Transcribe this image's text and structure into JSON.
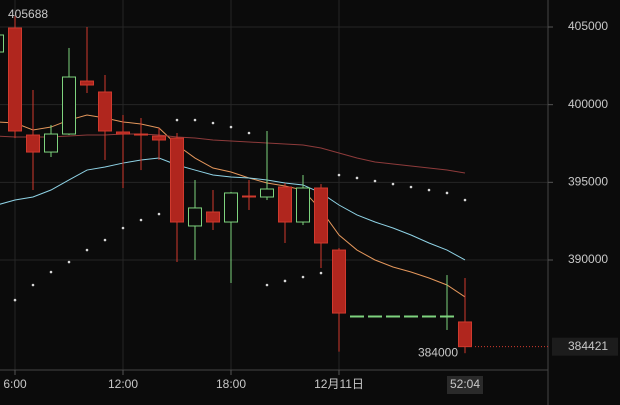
{
  "chart_data": {
    "type": "candlestick",
    "x": [
      5,
      6,
      7,
      8,
      9,
      10,
      11,
      12,
      13,
      14,
      15,
      16,
      17,
      18,
      19,
      20,
      21,
      22,
      23,
      24,
      25,
      26,
      27,
      28,
      29,
      30,
      31
    ],
    "open": [
      403390,
      404935,
      398045,
      396950,
      398110,
      401520,
      400815,
      398240,
      398110,
      397980,
      397850,
      392190,
      393090,
      392445,
      394120,
      394055,
      394700,
      392445,
      394635,
      390640,
      386395,
      386395,
      386395,
      386395,
      386395,
      386395,
      386010
    ],
    "high": [
      404810,
      405688,
      400945,
      398690,
      403650,
      405000,
      401910,
      399335,
      399140,
      398500,
      398175,
      395150,
      394505,
      394380,
      395150,
      398305,
      394955,
      395470,
      394890,
      390770,
      386395,
      386395,
      386395,
      386395,
      386395,
      389030,
      388840
    ],
    "low": [
      403200,
      397850,
      394505,
      396630,
      398045,
      400750,
      396440,
      394635,
      395790,
      396440,
      389870,
      390000,
      391930,
      388520,
      393220,
      393860,
      391095,
      392250,
      389485,
      384100,
      386395,
      386395,
      386395,
      386395,
      386395,
      385495,
      384000
    ],
    "close": [
      404485,
      398305,
      396950,
      398110,
      401780,
      401265,
      398305,
      398110,
      398045,
      397725,
      392445,
      393350,
      392445,
      394315,
      394055,
      394570,
      392445,
      394635,
      391095,
      386585,
      386395,
      386395,
      386395,
      386395,
      386395,
      386395,
      384421
    ],
    "up_color": "#7ed37e",
    "down_color": "#b0261e",
    "lines": [
      {
        "color": "#e4975c",
        "values": [
          398885,
          398820,
          398370,
          398560,
          399010,
          399335,
          399140,
          398885,
          398755,
          398500,
          397400,
          396565,
          395920,
          395665,
          395280,
          394955,
          394765,
          394505,
          393220,
          391610,
          390640,
          390000,
          389550,
          389225,
          388840,
          388390,
          387620
        ]
      },
      {
        "color": "#8fd3e6",
        "values": [
          393540,
          393860,
          394055,
          394505,
          395150,
          395790,
          395985,
          396240,
          396440,
          396565,
          396115,
          395790,
          395470,
          395340,
          395280,
          395150,
          394955,
          394830,
          394315,
          393540,
          392900,
          392445,
          392060,
          391610,
          391095,
          390640,
          390000
        ]
      },
      {
        "color": "#8e3b3b",
        "values": [
          397980,
          397920,
          397920,
          397920,
          397980,
          398045,
          398045,
          398110,
          398110,
          398045,
          397920,
          397850,
          397725,
          397660,
          397595,
          397530,
          397470,
          397400,
          397210,
          396890,
          396565,
          396310,
          396180,
          396050,
          395920,
          395790,
          395600
        ]
      }
    ],
    "sar": {
      "color": "#d8d8d8",
      "values": [
        null,
        387420,
        388390,
        389225,
        389870,
        390640,
        391285,
        392060,
        392575,
        392960,
        399010,
        399010,
        398820,
        398560,
        398175,
        388390,
        388650,
        388905,
        389160,
        395470,
        395280,
        395085,
        394890,
        394700,
        394505,
        394315,
        393860
      ]
    },
    "xlim": [
      5.1667,
      35.611
    ],
    "xticks": [
      {
        "value": 6,
        "label": "6:00"
      },
      {
        "value": 12,
        "label": "12:00"
      },
      {
        "value": 18,
        "label": "18:00"
      },
      {
        "value": 24,
        "label": "12月11日"
      }
    ],
    "ylim": [
      382918,
      406738
    ],
    "yticks": [
      390000,
      395000,
      400000,
      405000
    ],
    "grid": true,
    "countdown": "52:04"
  }
}
